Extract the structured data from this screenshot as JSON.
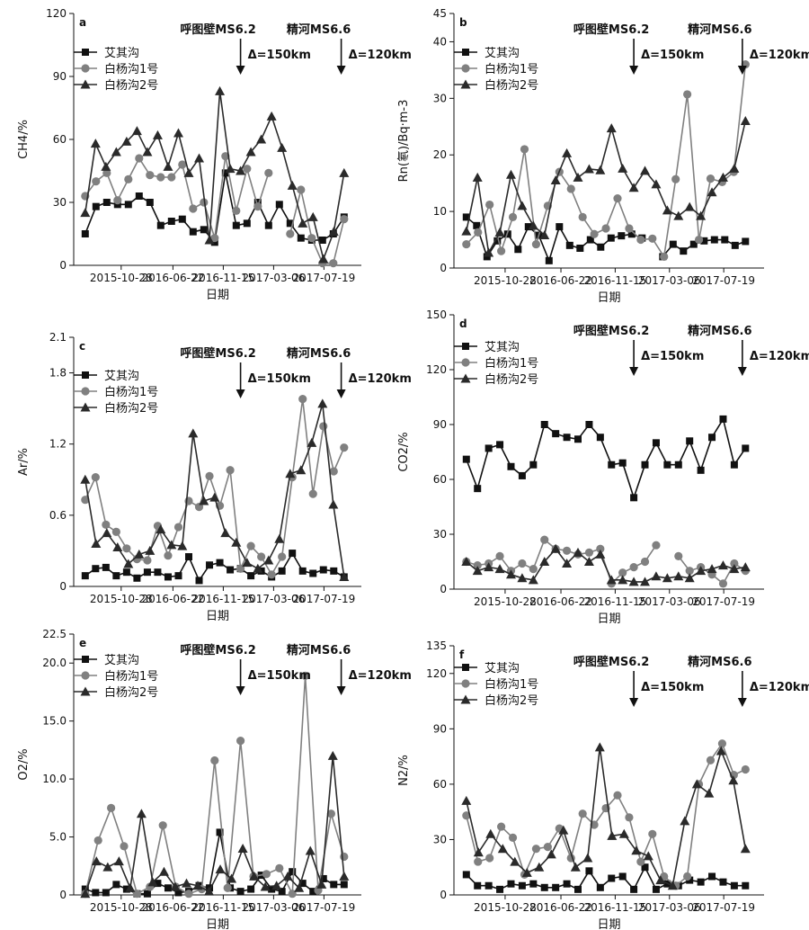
{
  "x_tick_labels": [
    "2015-10-28",
    "2016-06-22",
    "2016-11-15",
    "2017-03-06",
    "2017-07-19"
  ],
  "xlabel": "日期",
  "legend": [
    "艾其沟",
    "白杨沟1号",
    "白杨沟2号"
  ],
  "colors": {
    "艾其沟": "#111111",
    "白杨沟1号": "#808080",
    "白杨沟2号": "#2a2a2a"
  },
  "markers": {
    "艾其沟": "square",
    "白杨沟1号": "circle",
    "白杨沟2号": "triangle"
  },
  "annotations": {
    "hutubi": {
      "text": "呼图壁MS6.2",
      "delta": "Δ=150km"
    },
    "jinghe": {
      "text": "精河MS6.6",
      "delta": "Δ=120km"
    }
  },
  "chart_data": [
    {
      "panel": "a",
      "type": "line",
      "ylabel": "CH4/%",
      "ylim": [
        0,
        120
      ],
      "yticks": [
        "0",
        "30",
        "60",
        "90",
        "120"
      ],
      "series": [
        {
          "name": "艾其沟",
          "values": [
            15,
            28,
            30,
            29,
            29,
            33,
            30,
            19,
            21,
            22,
            16,
            17,
            11,
            44,
            19,
            20,
            30,
            19,
            29,
            20,
            13,
            12,
            12,
            15,
            23
          ]
        },
        {
          "name": "白杨沟1号",
          "values": [
            33,
            40,
            44,
            31,
            41,
            51,
            43,
            42,
            42,
            48,
            27,
            30,
            13,
            52,
            26,
            46,
            28,
            44,
            null,
            15,
            36,
            13,
            1,
            1,
            22
          ]
        },
        {
          "name": "白杨沟2号",
          "values": [
            25,
            58,
            47,
            54,
            59,
            64,
            54,
            62,
            47,
            63,
            44,
            51,
            12,
            83,
            46,
            45,
            54,
            60,
            71,
            56,
            38,
            20,
            23,
            3,
            16,
            44
          ]
        }
      ]
    },
    {
      "panel": "b",
      "type": "line",
      "ylabel": "Rn(氡)/Bq·m-3",
      "ylim": [
        0,
        45
      ],
      "yticks": [
        "0",
        "10",
        "20",
        "30",
        "40",
        "45"
      ],
      "series": [
        {
          "name": "艾其沟",
          "values": [
            9,
            7.5,
            2,
            4.8,
            6,
            3.3,
            7.3,
            5.8,
            1.3,
            7.3,
            4,
            3.5,
            5,
            3.7,
            5.3,
            5.7,
            6,
            5.3,
            null,
            2,
            4.2,
            3,
            4.2,
            4.8,
            5,
            5,
            4,
            4.7
          ]
        },
        {
          "name": "白杨沟1号",
          "values": [
            4.2,
            6.3,
            11.2,
            3,
            9,
            21,
            4.2,
            11,
            17,
            14,
            9,
            6,
            7,
            12.3,
            7,
            5,
            5.2,
            2,
            15.7,
            30.7,
            5,
            15.8,
            15.2,
            17,
            36
          ]
        },
        {
          "name": "白杨沟2号",
          "values": [
            6.5,
            16,
            2.7,
            6.3,
            16.5,
            11,
            7.5,
            5.8,
            15.5,
            20.3,
            16,
            17.5,
            17.3,
            24.7,
            17.6,
            14.2,
            17.2,
            14.8,
            10.2,
            9.2,
            10.8,
            9.2,
            13.4,
            16,
            17.6,
            26
          ]
        }
      ]
    },
    {
      "panel": "c",
      "type": "line",
      "ylabel": "Ar/%",
      "ylim": [
        0,
        2.1
      ],
      "yticks": [
        "0",
        "0.6",
        "1.2",
        "1.8",
        "2.1"
      ],
      "series": [
        {
          "name": "艾其沟",
          "values": [
            0.09,
            0.15,
            0.16,
            0.09,
            0.12,
            0.07,
            0.12,
            0.12,
            0.08,
            0.09,
            0.25,
            0.05,
            0.18,
            0.2,
            0.14,
            0.15,
            0.09,
            0.13,
            0.08,
            0.13,
            0.28,
            0.13,
            0.11,
            0.14,
            0.13,
            0.08
          ]
        },
        {
          "name": "白杨沟1号",
          "values": [
            0.73,
            0.92,
            0.52,
            0.46,
            0.32,
            0.23,
            0.22,
            0.51,
            0.26,
            0.5,
            0.72,
            0.67,
            0.93,
            0.68,
            0.98,
            0.15,
            0.34,
            0.25,
            0.1,
            0.25,
            0.92,
            1.58,
            0.78,
            1.35,
            0.97,
            1.17
          ]
        },
        {
          "name": "白杨沟2号",
          "values": [
            0.9,
            0.36,
            0.45,
            0.33,
            0.19,
            0.27,
            0.3,
            0.48,
            0.35,
            0.34,
            1.29,
            0.72,
            0.75,
            0.45,
            0.37,
            0.2,
            0.15,
            0.22,
            0.4,
            0.95,
            0.98,
            1.21,
            1.54,
            0.69,
            0.08
          ]
        }
      ]
    },
    {
      "panel": "d",
      "type": "line",
      "ylabel": "CO2/%",
      "ylim": [
        0,
        150
      ],
      "yticks": [
        "0",
        "30",
        "60",
        "90",
        "120",
        "150"
      ],
      "series": [
        {
          "name": "艾其沟",
          "values": [
            71,
            55,
            77,
            79,
            67,
            62,
            68,
            90,
            85,
            83,
            82,
            90,
            83,
            68,
            69,
            50,
            68,
            80,
            68,
            68,
            81,
            65,
            83,
            93,
            68,
            77
          ]
        },
        {
          "name": "白杨沟1号",
          "values": [
            15,
            13,
            14,
            18,
            10,
            14,
            11,
            27,
            22,
            21,
            19,
            20,
            22,
            3,
            9,
            12,
            15,
            24,
            null,
            18,
            10,
            12,
            8,
            3,
            14,
            10
          ]
        },
        {
          "name": "白杨沟2号",
          "values": [
            15,
            10,
            12,
            11,
            8,
            6,
            5,
            15,
            22,
            14,
            20,
            15,
            19,
            5,
            5,
            4,
            4,
            7,
            6,
            7,
            6,
            10,
            11,
            13,
            11,
            12
          ]
        }
      ]
    },
    {
      "panel": "e",
      "type": "line",
      "ylabel": "O2/%",
      "ylim": [
        0,
        22.5
      ],
      "yticks": [
        "0",
        "5.0",
        "10.0",
        "15.0",
        "20.0",
        "22.5"
      ],
      "series": [
        {
          "name": "艾其沟",
          "values": [
            0.5,
            0.2,
            0.2,
            0.9,
            0.5,
            0.1,
            0.1,
            1.0,
            0.6,
            0.2,
            0.3,
            0.8,
            0.6,
            5.4,
            0.6,
            0.3,
            0.5,
            1.7,
            0.5,
            0.3,
            2.0,
            1.0,
            0.3,
            1.4,
            0.9,
            0.9
          ]
        },
        {
          "name": "白杨沟1号",
          "values": [
            0.1,
            4.7,
            7.5,
            4.2,
            0.1,
            0.7,
            6.0,
            0.7,
            0.1,
            0.5,
            11.6,
            0.6,
            13.3,
            1.6,
            1.8,
            2.3,
            0.1,
            18.9,
            0.4,
            7.0,
            3.3
          ]
        },
        {
          "name": "白杨沟2号",
          "values": [
            0.1,
            2.9,
            2.4,
            2.9,
            0.6,
            7.0,
            1.1,
            2.0,
            0.7,
            1.0,
            0.8,
            0.3,
            2.2,
            1.4,
            4.0,
            1.6,
            0.7,
            0.8,
            1.6,
            0.6,
            3.8,
            0.9,
            12.0,
            1.6
          ]
        }
      ]
    },
    {
      "panel": "f",
      "type": "line",
      "ylabel": "N2/%",
      "ylim": [
        0,
        135
      ],
      "yticks": [
        "0",
        "30",
        "60",
        "90",
        "120",
        "135"
      ],
      "series": [
        {
          "name": "艾其沟",
          "values": [
            11,
            5,
            5,
            3,
            6,
            5,
            6,
            4,
            4,
            6,
            3,
            13,
            4,
            9,
            10,
            3,
            15,
            3,
            6,
            5,
            8,
            7,
            10,
            7,
            5,
            5
          ]
        },
        {
          "name": "白杨沟1号",
          "values": [
            43,
            18,
            20,
            37,
            31,
            11,
            25,
            26,
            36,
            20,
            44,
            38,
            47,
            54,
            42,
            18,
            33,
            10,
            5,
            10,
            60,
            73,
            82,
            65,
            68
          ]
        },
        {
          "name": "白杨沟2号",
          "values": [
            51,
            23,
            33,
            25,
            18,
            12,
            15,
            22,
            35,
            15,
            20,
            80,
            32,
            33,
            24,
            21,
            8,
            5,
            40,
            60,
            55,
            78,
            62,
            25
          ]
        }
      ]
    }
  ]
}
